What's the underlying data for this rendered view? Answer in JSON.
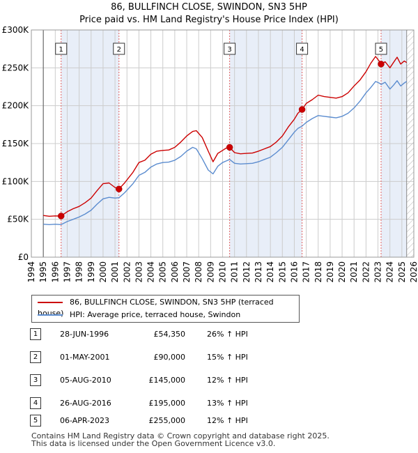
{
  "title_line1": "86, BULLFINCH CLOSE, SWINDON, SN3 5HP",
  "title_line2": "Price paid vs. HM Land Registry's House Price Index (HPI)",
  "colors": {
    "property": "#cc0000",
    "hpi": "#5b8ccf",
    "shade": "#e8eef8",
    "marker_line": "#e06060"
  },
  "chart_data": {
    "type": "line",
    "title": "Price paid vs. HM Land Registry's House Price Index (HPI)",
    "xlabel": "",
    "ylabel": "",
    "xlim": [
      1994,
      2026
    ],
    "ylim": [
      0,
      300000
    ],
    "y_ticks": [
      0,
      50000,
      100000,
      150000,
      200000,
      250000,
      300000
    ],
    "y_tick_labels": [
      "£0",
      "£50K",
      "£100K",
      "£150K",
      "£200K",
      "£250K",
      "£300K"
    ],
    "x_ticks": [
      1994,
      1995,
      1996,
      1997,
      1998,
      1999,
      2000,
      2001,
      2002,
      2003,
      2004,
      2005,
      2006,
      2007,
      2008,
      2009,
      2010,
      2011,
      2012,
      2013,
      2014,
      2015,
      2016,
      2017,
      2018,
      2019,
      2020,
      2021,
      2022,
      2023,
      2024,
      2025,
      2026
    ],
    "data_start": 1995.0,
    "data_end": 2025.4,
    "shaded_ranges": [
      [
        1996.49,
        2001.33
      ],
      [
        2010.59,
        2016.65
      ],
      [
        2023.26,
        2025.4
      ]
    ],
    "hatch_from": 2025.4,
    "series": [
      {
        "name": "86, BULLFINCH CLOSE, SWINDON, SN3 5HP (terraced house)",
        "color": "#cc0000",
        "x": [
          1995.0,
          1995.5,
          1996.0,
          1996.49,
          1997.0,
          1997.5,
          1998.0,
          1998.5,
          1999.0,
          1999.5,
          2000.0,
          2000.5,
          2001.0,
          2001.33,
          2001.8,
          2002.5,
          2003.0,
          2003.5,
          2004.0,
          2004.5,
          2005.0,
          2005.5,
          2006.0,
          2006.5,
          2007.0,
          2007.5,
          2007.8,
          2008.3,
          2008.8,
          2009.2,
          2009.6,
          2010.0,
          2010.3,
          2010.59,
          2011.0,
          2011.5,
          2012.0,
          2012.5,
          2013.0,
          2013.5,
          2014.0,
          2014.5,
          2015.0,
          2015.5,
          2016.0,
          2016.3,
          2016.65,
          2017.0,
          2017.5,
          2018.0,
          2018.5,
          2019.0,
          2019.5,
          2020.0,
          2020.5,
          2021.0,
          2021.5,
          2022.0,
          2022.4,
          2022.8,
          2023.1,
          2023.26,
          2023.6,
          2024.0,
          2024.3,
          2024.6,
          2024.9,
          2025.2,
          2025.4
        ],
        "y": [
          55000,
          54000,
          54500,
          54350,
          60000,
          64000,
          67000,
          72000,
          78000,
          88000,
          97000,
          98000,
          92000,
          90000,
          98000,
          112000,
          125000,
          128000,
          136000,
          140000,
          141000,
          141500,
          145000,
          152000,
          160000,
          166000,
          167000,
          158000,
          140000,
          126000,
          137000,
          141000,
          144000,
          145000,
          138000,
          136500,
          137000,
          137500,
          140000,
          143000,
          146000,
          152000,
          160000,
          172000,
          182000,
          190000,
          195000,
          203000,
          208000,
          214000,
          212000,
          211000,
          210000,
          212000,
          217000,
          226000,
          234000,
          245000,
          256000,
          265000,
          259000,
          255000,
          258000,
          250000,
          257000,
          264000,
          255000,
          259000,
          257000
        ]
      },
      {
        "name": "HPI: Average price, terraced house, Swindon",
        "color": "#5b8ccf",
        "x": [
          1995.0,
          1995.5,
          1996.0,
          1996.49,
          1997.0,
          1997.5,
          1998.0,
          1998.5,
          1999.0,
          1999.5,
          2000.0,
          2000.5,
          2001.0,
          2001.33,
          2001.8,
          2002.5,
          2003.0,
          2003.5,
          2004.0,
          2004.5,
          2005.0,
          2005.5,
          2006.0,
          2006.5,
          2007.0,
          2007.5,
          2007.8,
          2008.3,
          2008.8,
          2009.2,
          2009.6,
          2010.0,
          2010.3,
          2010.59,
          2011.0,
          2011.5,
          2012.0,
          2012.5,
          2013.0,
          2013.5,
          2014.0,
          2014.5,
          2015.0,
          2015.5,
          2016.0,
          2016.3,
          2016.65,
          2017.0,
          2017.5,
          2018.0,
          2018.5,
          2019.0,
          2019.5,
          2020.0,
          2020.5,
          2021.0,
          2021.5,
          2022.0,
          2022.4,
          2022.8,
          2023.1,
          2023.26,
          2023.6,
          2024.0,
          2024.3,
          2024.6,
          2024.9,
          2025.2,
          2025.4
        ],
        "y": [
          43500,
          43000,
          43500,
          43000,
          47000,
          50000,
          53000,
          57000,
          62000,
          70000,
          77000,
          79000,
          78000,
          78500,
          85000,
          97000,
          108000,
          112000,
          119000,
          123000,
          125000,
          125500,
          128000,
          133000,
          140000,
          145000,
          143000,
          130000,
          115000,
          110000,
          120000,
          125000,
          127000,
          129000,
          124000,
          123000,
          123500,
          124000,
          126000,
          129000,
          132000,
          138000,
          145000,
          155000,
          165000,
          170000,
          173000,
          178000,
          183000,
          187000,
          186000,
          185000,
          184000,
          186000,
          190000,
          197000,
          206000,
          217000,
          224000,
          232000,
          230000,
          228000,
          231000,
          222000,
          227000,
          233000,
          226000,
          230000,
          232000
        ]
      }
    ],
    "sales": [
      {
        "n": "1",
        "x": 1996.49,
        "y": 54350
      },
      {
        "n": "2",
        "x": 2001.33,
        "y": 90000
      },
      {
        "n": "3",
        "x": 2010.59,
        "y": 145000
      },
      {
        "n": "4",
        "x": 2016.65,
        "y": 195000
      },
      {
        "n": "5",
        "x": 2023.26,
        "y": 255000
      }
    ]
  },
  "legend": {
    "property": "86, BULLFINCH CLOSE, SWINDON, SN3 5HP (terraced house)",
    "hpi": "HPI: Average price, terraced house, Swindon"
  },
  "transactions": [
    {
      "n": "1",
      "date": "28-JUN-1996",
      "price": "£54,350",
      "hpi": "26% ↑ HPI"
    },
    {
      "n": "2",
      "date": "01-MAY-2001",
      "price": "£90,000",
      "hpi": "15% ↑ HPI"
    },
    {
      "n": "3",
      "date": "05-AUG-2010",
      "price": "£145,000",
      "hpi": "12% ↑ HPI"
    },
    {
      "n": "4",
      "date": "26-AUG-2016",
      "price": "£195,000",
      "hpi": "13% ↑ HPI"
    },
    {
      "n": "5",
      "date": "06-APR-2023",
      "price": "£255,000",
      "hpi": "12% ↑ HPI"
    }
  ],
  "footer_line1": "Contains HM Land Registry data © Crown copyright and database right 2025.",
  "footer_line2": "This data is licensed under the Open Government Licence v3.0."
}
